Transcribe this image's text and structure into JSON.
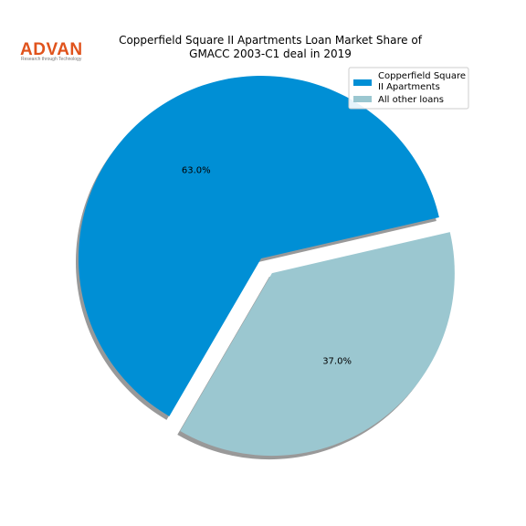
{
  "logo": {
    "name": "ADVAN",
    "tagline": "Research through Technology",
    "color": "#e0531c"
  },
  "chart_data": {
    "type": "pie",
    "title": "Copperfield Square II Apartments Loan Market Share of GMACC 2003-C1 deal in 2019",
    "title_lines": [
      "Copperfield Square II Apartments Loan Market Share of",
      "GMACC 2003-C1 deal in 2019"
    ],
    "slices": [
      {
        "label": "Copperfield Square II Apartments",
        "legend_lines": [
          "Copperfield Square",
          "II Apartments"
        ],
        "value": 63.0,
        "display": "63.0%",
        "color": "#008fd5",
        "exploded": false
      },
      {
        "label": "All other loans",
        "legend_lines": [
          "All other loans"
        ],
        "value": 37.0,
        "display": "37.0%",
        "color": "#9bc7d0",
        "exploded": true
      }
    ],
    "shadow": true,
    "legend_position": "top-right"
  }
}
